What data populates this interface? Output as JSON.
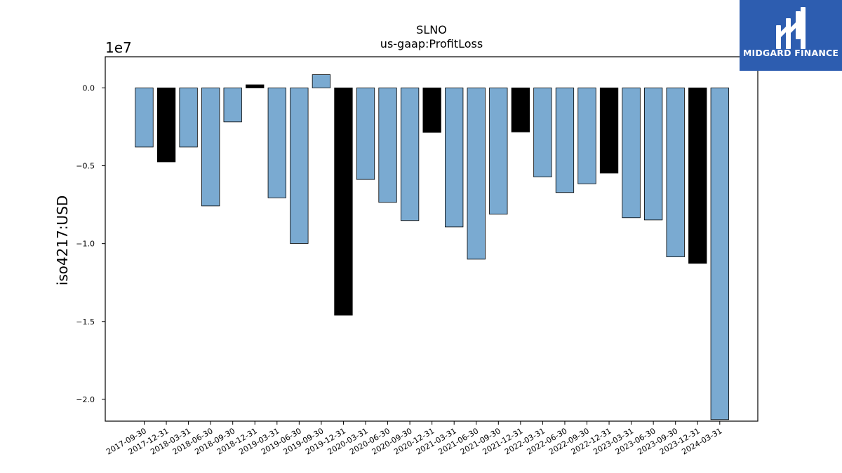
{
  "brand": {
    "name": "MIDGARD FINANCE",
    "bg_color": "#2d5db0",
    "icon": "midgard-logo-icon"
  },
  "chart_data": {
    "type": "bar",
    "title": "SLNO",
    "subtitle": "us-gaap:ProfitLoss",
    "ylabel": "iso4217:USD",
    "y_offset_text": "1e7",
    "y_scale": 10000000,
    "ylim": [
      -21400000,
      2000000
    ],
    "yticks": [
      0,
      -5000000,
      -10000000,
      -15000000,
      -20000000
    ],
    "ytick_labels": [
      "0.0",
      "−0.5",
      "−1.0",
      "−1.5",
      "−2.0"
    ],
    "colors": {
      "quarterly": "#7aaad1",
      "year_end": "#000000",
      "edge": "#000000"
    },
    "categories": [
      "2017-09-30",
      "2017-12-31",
      "2018-03-31",
      "2018-06-30",
      "2018-09-30",
      "2018-12-31",
      "2019-03-31",
      "2019-06-30",
      "2019-09-30",
      "2019-12-31",
      "2020-03-31",
      "2020-06-30",
      "2020-09-30",
      "2020-12-31",
      "2021-03-31",
      "2021-06-30",
      "2021-09-30",
      "2021-12-31",
      "2022-03-31",
      "2022-06-30",
      "2022-09-30",
      "2022-12-31",
      "2023-03-31",
      "2023-06-30",
      "2023-09-30",
      "2023-12-31",
      "2024-03-31"
    ],
    "values": [
      -3800000,
      -4750000,
      -3800000,
      -7580000,
      -2180000,
      200000,
      -7060000,
      -9990000,
      850000,
      -14600000,
      -5880000,
      -7350000,
      -8520000,
      -2860000,
      -8930000,
      -11000000,
      -8110000,
      -2830000,
      -5720000,
      -6720000,
      -6160000,
      -5470000,
      -8340000,
      -8480000,
      -10850000,
      -11270000,
      -21300000
    ],
    "highlight": [
      false,
      true,
      false,
      false,
      false,
      true,
      false,
      false,
      false,
      true,
      false,
      false,
      false,
      true,
      false,
      false,
      false,
      true,
      false,
      false,
      false,
      true,
      false,
      false,
      false,
      true,
      false
    ],
    "grid": false,
    "legend": "none"
  }
}
